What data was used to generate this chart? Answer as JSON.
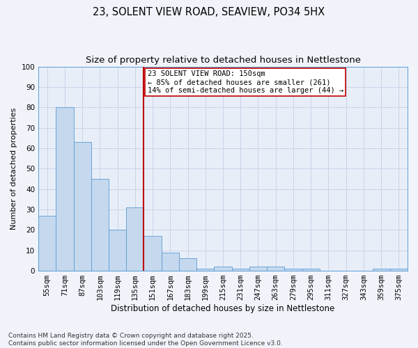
{
  "title": "23, SOLENT VIEW ROAD, SEAVIEW, PO34 5HX",
  "subtitle": "Size of property relative to detached houses in Nettlestone",
  "xlabel": "Distribution of detached houses by size in Nettlestone",
  "ylabel": "Number of detached properties",
  "categories": [
    "55sqm",
    "71sqm",
    "87sqm",
    "103sqm",
    "119sqm",
    "135sqm",
    "151sqm",
    "167sqm",
    "183sqm",
    "199sqm",
    "215sqm",
    "231sqm",
    "247sqm",
    "263sqm",
    "279sqm",
    "295sqm",
    "311sqm",
    "327sqm",
    "343sqm",
    "359sqm",
    "375sqm"
  ],
  "values": [
    27,
    80,
    63,
    45,
    20,
    31,
    17,
    9,
    6,
    1,
    2,
    1,
    2,
    2,
    1,
    1,
    0,
    0,
    0,
    1,
    1
  ],
  "bar_color": "#c5d8ed",
  "bar_edge_color": "#5b9bd5",
  "reference_line_index": 6,
  "reference_line_color": "#c00000",
  "annotation_text": "23 SOLENT VIEW ROAD: 150sqm\n← 85% of detached houses are smaller (261)\n14% of semi-detached houses are larger (44) →",
  "annotation_box_color": "#ffffff",
  "annotation_box_edge_color": "#c00000",
  "ylim": [
    0,
    100
  ],
  "yticks": [
    0,
    10,
    20,
    30,
    40,
    50,
    60,
    70,
    80,
    90,
    100
  ],
  "background_color": "#f0f4fa",
  "plot_bg_color": "#e8eef8",
  "grid_color": "#c8d4e8",
  "footnote": "Contains HM Land Registry data © Crown copyright and database right 2025.\nContains public sector information licensed under the Open Government Licence v3.0.",
  "title_fontsize": 10.5,
  "subtitle_fontsize": 9.5,
  "xlabel_fontsize": 8.5,
  "ylabel_fontsize": 8,
  "tick_fontsize": 7.5,
  "annotation_fontsize": 7.5,
  "footnote_fontsize": 6.5
}
